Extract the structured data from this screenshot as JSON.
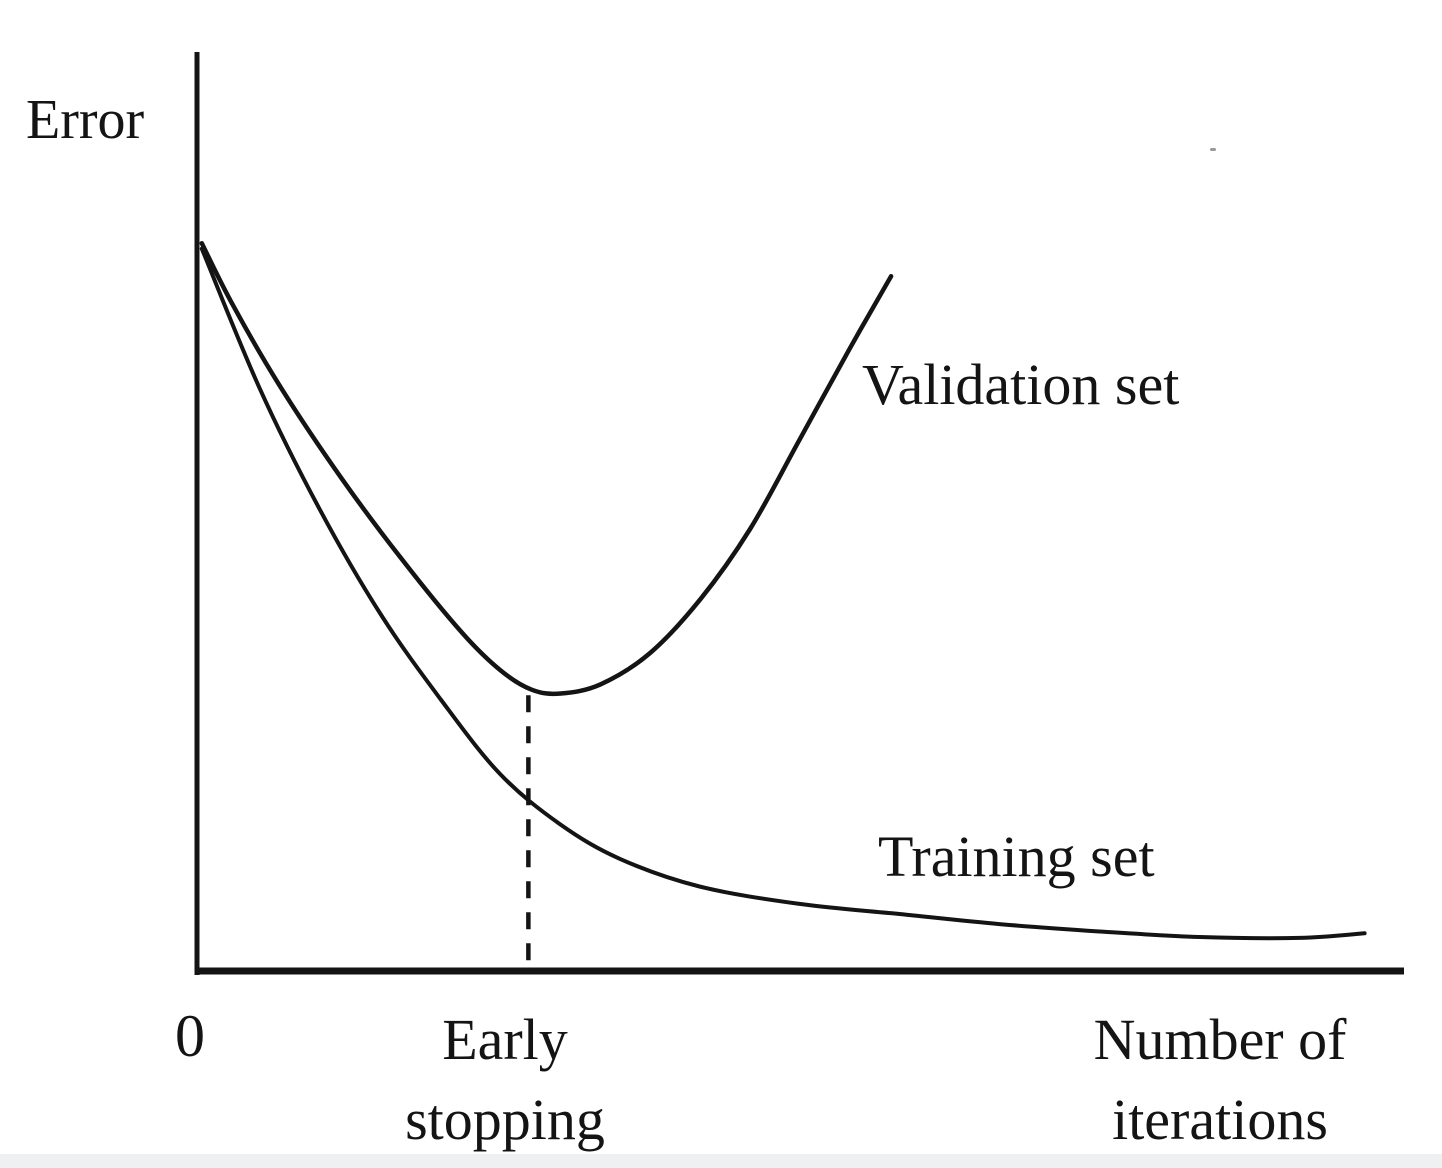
{
  "figure": {
    "background": "#ffffff",
    "ink_color": "#141414"
  },
  "labels": {
    "y_axis": "Error",
    "origin_tick": "0",
    "early_stopping": [
      "Early",
      "stopping"
    ],
    "x_axis": [
      "Number of",
      "iterations"
    ],
    "validation_series": "Validation set",
    "training_series": "Training set"
  },
  "chart_data": {
    "type": "line",
    "title": "",
    "xlabel": "Number of iterations",
    "ylabel": "Error",
    "x_tick_labels": [
      "0"
    ],
    "axes_numeric": false,
    "grid": false,
    "legend_position": "inline-annotations",
    "x_range_norm": [
      0,
      1
    ],
    "y_range_norm": [
      0,
      1
    ],
    "annotations": [
      {
        "text": "Early stopping",
        "x": 0.275,
        "line_top": 0.3,
        "style": "dashed-vertical-line"
      }
    ],
    "series": [
      {
        "name": "Validation set",
        "points": [
          [
            0.004,
            0.792
          ],
          [
            0.03,
            0.724
          ],
          [
            0.07,
            0.634
          ],
          [
            0.12,
            0.536
          ],
          [
            0.17,
            0.448
          ],
          [
            0.22,
            0.368
          ],
          [
            0.252,
            0.327
          ],
          [
            0.278,
            0.306
          ],
          [
            0.302,
            0.302
          ],
          [
            0.335,
            0.312
          ],
          [
            0.376,
            0.346
          ],
          [
            0.418,
            0.405
          ],
          [
            0.459,
            0.481
          ],
          [
            0.5,
            0.578
          ],
          [
            0.542,
            0.678
          ],
          [
            0.576,
            0.756
          ]
        ]
      },
      {
        "name": "Training set",
        "points": [
          [
            0.004,
            0.786
          ],
          [
            0.052,
            0.634
          ],
          [
            0.102,
            0.502
          ],
          [
            0.152,
            0.389
          ],
          [
            0.202,
            0.296
          ],
          [
            0.251,
            0.215
          ],
          [
            0.301,
            0.16
          ],
          [
            0.351,
            0.122
          ],
          [
            0.417,
            0.092
          ],
          [
            0.5,
            0.073
          ],
          [
            0.583,
            0.062
          ],
          [
            0.666,
            0.051
          ],
          [
            0.749,
            0.043
          ],
          [
            0.832,
            0.037
          ],
          [
            0.915,
            0.036
          ],
          [
            0.969,
            0.041
          ]
        ]
      }
    ]
  }
}
